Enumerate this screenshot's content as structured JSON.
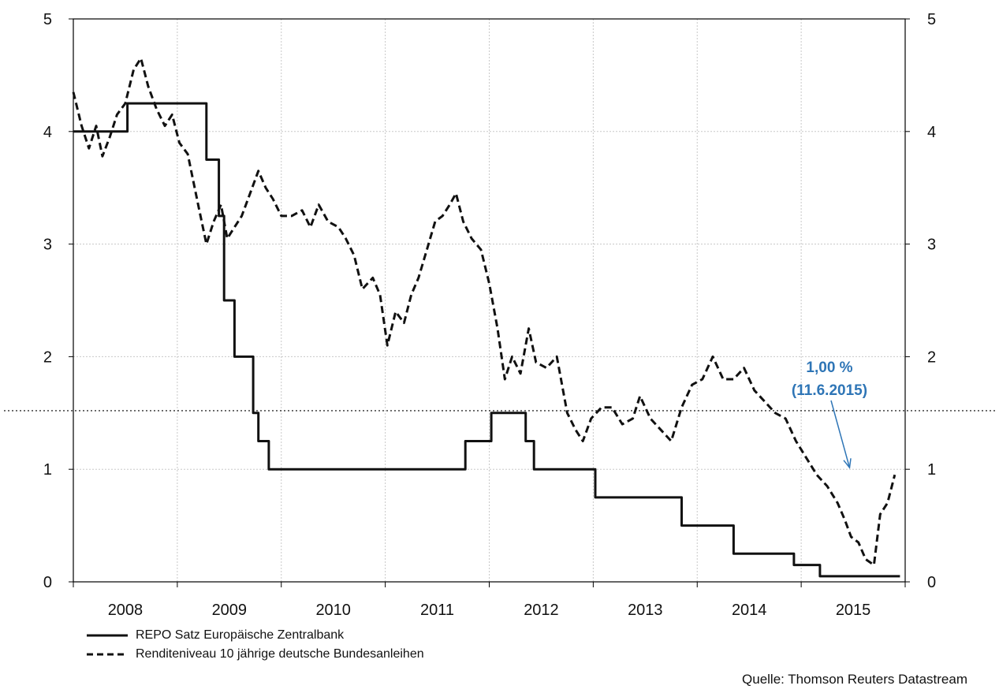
{
  "chart_data": {
    "type": "line",
    "x_range": [
      2007.5,
      2015.5
    ],
    "ylim": [
      0,
      5
    ],
    "y_ticks": [
      "0",
      "1",
      "2",
      "3",
      "4",
      "5"
    ],
    "x_ticks": [
      "2008",
      "2009",
      "2010",
      "2011",
      "2012",
      "2013",
      "2014",
      "2015"
    ],
    "grid": true,
    "legend_position": "bottom-left",
    "reference_line": {
      "y": 1.52,
      "style": "dotted"
    },
    "annotation": {
      "line1": "1,00 %",
      "line2": "(11.6.2015)",
      "color": "#2e75b6",
      "target_x": 2014.95,
      "target_y": 1.0
    },
    "series": [
      {
        "name": "REPO Satz Europäische Zentralbank",
        "style": "solid",
        "step": true,
        "points": [
          [
            2007.5,
            4.0
          ],
          [
            2008.02,
            4.25
          ],
          [
            2008.78,
            3.75
          ],
          [
            2008.9,
            3.25
          ],
          [
            2008.95,
            2.5
          ],
          [
            2009.05,
            2.0
          ],
          [
            2009.23,
            1.5
          ],
          [
            2009.28,
            1.25
          ],
          [
            2009.38,
            1.0
          ],
          [
            2011.27,
            1.25
          ],
          [
            2011.52,
            1.5
          ],
          [
            2011.85,
            1.25
          ],
          [
            2011.93,
            1.0
          ],
          [
            2012.52,
            0.75
          ],
          [
            2013.35,
            0.5
          ],
          [
            2013.85,
            0.25
          ],
          [
            2014.43,
            0.15
          ],
          [
            2014.68,
            0.05
          ],
          [
            2015.45,
            0.05
          ]
        ]
      },
      {
        "name": "Renditeniveau 10 jährige deutsche Bundesanleihen",
        "style": "dashed",
        "step": false,
        "points": [
          [
            2007.5,
            4.35
          ],
          [
            2007.58,
            4.05
          ],
          [
            2007.65,
            3.85
          ],
          [
            2007.72,
            4.05
          ],
          [
            2007.78,
            3.78
          ],
          [
            2007.85,
            3.95
          ],
          [
            2007.92,
            4.15
          ],
          [
            2008.0,
            4.25
          ],
          [
            2008.08,
            4.55
          ],
          [
            2008.15,
            4.65
          ],
          [
            2008.22,
            4.4
          ],
          [
            2008.3,
            4.2
          ],
          [
            2008.38,
            4.05
          ],
          [
            2008.45,
            4.15
          ],
          [
            2008.52,
            3.9
          ],
          [
            2008.6,
            3.8
          ],
          [
            2008.7,
            3.35
          ],
          [
            2008.78,
            3.0
          ],
          [
            2008.85,
            3.2
          ],
          [
            2008.92,
            3.35
          ],
          [
            2008.98,
            3.05
          ],
          [
            2009.05,
            3.15
          ],
          [
            2009.12,
            3.25
          ],
          [
            2009.2,
            3.45
          ],
          [
            2009.28,
            3.65
          ],
          [
            2009.35,
            3.5
          ],
          [
            2009.42,
            3.4
          ],
          [
            2009.5,
            3.25
          ],
          [
            2009.6,
            3.25
          ],
          [
            2009.7,
            3.3
          ],
          [
            2009.78,
            3.15
          ],
          [
            2009.86,
            3.35
          ],
          [
            2009.95,
            3.2
          ],
          [
            2010.05,
            3.15
          ],
          [
            2010.12,
            3.05
          ],
          [
            2010.2,
            2.9
          ],
          [
            2010.28,
            2.6
          ],
          [
            2010.38,
            2.7
          ],
          [
            2010.45,
            2.55
          ],
          [
            2010.52,
            2.1
          ],
          [
            2010.6,
            2.4
          ],
          [
            2010.68,
            2.3
          ],
          [
            2010.75,
            2.55
          ],
          [
            2010.82,
            2.7
          ],
          [
            2010.9,
            2.95
          ],
          [
            2010.98,
            3.2
          ],
          [
            2011.05,
            3.25
          ],
          [
            2011.12,
            3.35
          ],
          [
            2011.18,
            3.45
          ],
          [
            2011.25,
            3.2
          ],
          [
            2011.33,
            3.05
          ],
          [
            2011.42,
            2.95
          ],
          [
            2011.5,
            2.65
          ],
          [
            2011.58,
            2.25
          ],
          [
            2011.65,
            1.8
          ],
          [
            2011.72,
            2.0
          ],
          [
            2011.8,
            1.85
          ],
          [
            2011.88,
            2.25
          ],
          [
            2011.95,
            1.95
          ],
          [
            2012.05,
            1.9
          ],
          [
            2012.15,
            2.0
          ],
          [
            2012.25,
            1.5
          ],
          [
            2012.33,
            1.35
          ],
          [
            2012.4,
            1.25
          ],
          [
            2012.48,
            1.45
          ],
          [
            2012.58,
            1.55
          ],
          [
            2012.68,
            1.55
          ],
          [
            2012.78,
            1.4
          ],
          [
            2012.88,
            1.45
          ],
          [
            2012.95,
            1.65
          ],
          [
            2013.05,
            1.45
          ],
          [
            2013.15,
            1.35
          ],
          [
            2013.25,
            1.25
          ],
          [
            2013.35,
            1.55
          ],
          [
            2013.45,
            1.75
          ],
          [
            2013.55,
            1.8
          ],
          [
            2013.65,
            2.0
          ],
          [
            2013.75,
            1.8
          ],
          [
            2013.85,
            1.8
          ],
          [
            2013.95,
            1.9
          ],
          [
            2014.05,
            1.7
          ],
          [
            2014.15,
            1.6
          ],
          [
            2014.25,
            1.5
          ],
          [
            2014.35,
            1.45
          ],
          [
            2014.45,
            1.25
          ],
          [
            2014.55,
            1.1
          ],
          [
            2014.65,
            0.95
          ],
          [
            2014.75,
            0.85
          ],
          [
            2014.85,
            0.7
          ],
          [
            2014.92,
            0.55
          ],
          [
            2014.98,
            0.4
          ],
          [
            2015.05,
            0.35
          ],
          [
            2015.12,
            0.2
          ],
          [
            2015.2,
            0.15
          ],
          [
            2015.26,
            0.6
          ],
          [
            2015.33,
            0.7
          ],
          [
            2015.4,
            0.95
          ]
        ]
      }
    ]
  },
  "source": "Quelle: Thomson Reuters Datastream"
}
